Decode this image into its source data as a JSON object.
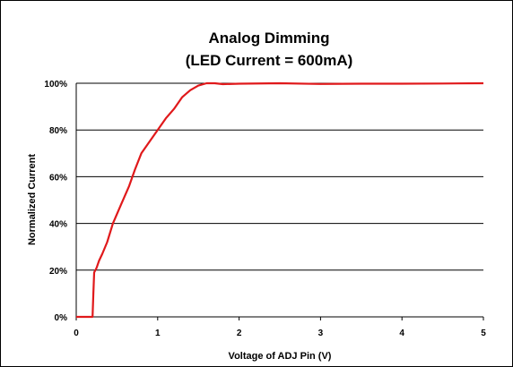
{
  "chart_data": {
    "type": "line",
    "title": "Analog Dimming",
    "subtitle": "(LED Current = 600mA)",
    "xlabel": "Voltage of ADJ Pin (V)",
    "ylabel": "Normalized Current",
    "xlim": [
      0,
      5
    ],
    "ylim": [
      0,
      100
    ],
    "x_ticks": [
      "0",
      "1",
      "2",
      "3",
      "4",
      "5"
    ],
    "y_ticks": [
      "0%",
      "20%",
      "40%",
      "60%",
      "80%",
      "100%"
    ],
    "grid": "horizontal",
    "line_color": "#e0191b",
    "series": [
      {
        "x": [
          0,
          0.2,
          0.21,
          0.22,
          0.25,
          0.28,
          0.32,
          0.38,
          0.45,
          0.55,
          0.65,
          0.72,
          0.8,
          0.9,
          1.0,
          1.1,
          1.2,
          1.3,
          1.4,
          1.5,
          1.6,
          1.7,
          1.8,
          2.0,
          2.5,
          3.0,
          3.5,
          4.0,
          4.5,
          5.0
        ],
        "y": [
          0,
          0,
          10,
          19,
          21,
          24,
          27,
          32,
          40,
          48,
          56,
          63,
          70,
          75,
          80,
          85,
          89,
          94,
          97,
          99,
          100,
          100,
          99.6,
          99.8,
          100,
          99.7,
          99.8,
          99.8,
          99.9,
          100
        ]
      }
    ]
  }
}
